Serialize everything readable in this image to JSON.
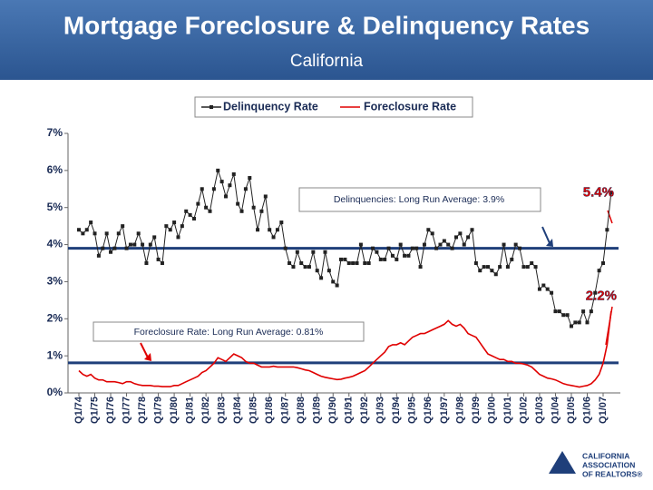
{
  "chart_data": {
    "type": "line",
    "title": "Mortgage Foreclosure & Delinquency Rates",
    "subtitle": "California",
    "categories": [
      "Q1/74",
      null,
      null,
      null,
      "Q1/75",
      null,
      null,
      null,
      "Q1/76",
      null,
      null,
      null,
      "Q1/77",
      null,
      null,
      null,
      "Q1/78",
      null,
      null,
      null,
      "Q1/79",
      null,
      null,
      null,
      "Q1/80",
      null,
      null,
      null,
      "Q1/81",
      null,
      null,
      null,
      "Q1/82",
      null,
      null,
      null,
      "Q1/83",
      null,
      null,
      null,
      "Q1/84",
      null,
      null,
      null,
      "Q1/85",
      null,
      null,
      null,
      "Q1/86",
      null,
      null,
      null,
      "Q1/87",
      null,
      null,
      null,
      "Q1/88",
      null,
      null,
      null,
      "Q1/89",
      null,
      null,
      null,
      "Q1/90",
      null,
      null,
      null,
      "Q1/91",
      null,
      null,
      null,
      "Q1/92",
      null,
      null,
      null,
      "Q1/93",
      null,
      null,
      null,
      "Q1/94",
      null,
      null,
      null,
      "Q1/95",
      null,
      null,
      null,
      "Q1/96",
      null,
      null,
      null,
      "Q1/97",
      null,
      null,
      null,
      "Q1/98",
      null,
      null,
      null,
      "Q1/99",
      null,
      null,
      null,
      "Q1/00",
      null,
      null,
      null,
      "Q1/01",
      null,
      null,
      null,
      "Q1/02",
      null,
      null,
      null,
      "Q1/03",
      null,
      null,
      null,
      "Q1/04",
      null,
      null,
      null,
      "Q1/05",
      null,
      null,
      null,
      "Q1/06",
      null,
      null,
      null,
      "Q1/07",
      null,
      null
    ],
    "series": [
      {
        "name": "Delinquency Rate",
        "color": "#222222",
        "markers": true,
        "values": [
          4.4,
          4.3,
          4.4,
          4.6,
          4.3,
          3.7,
          3.9,
          4.3,
          3.8,
          3.9,
          4.3,
          4.5,
          3.9,
          4.0,
          4.0,
          4.3,
          4.0,
          3.5,
          4.0,
          4.2,
          3.6,
          3.5,
          4.5,
          4.4,
          4.6,
          4.2,
          4.5,
          4.9,
          4.8,
          4.7,
          5.1,
          5.5,
          5.0,
          4.9,
          5.5,
          6.0,
          5.7,
          5.3,
          5.6,
          5.9,
          5.1,
          4.9,
          5.5,
          5.8,
          5.0,
          4.4,
          4.9,
          5.3,
          4.4,
          4.2,
          4.4,
          4.6,
          3.9,
          3.5,
          3.4,
          3.8,
          3.5,
          3.4,
          3.4,
          3.8,
          3.3,
          3.1,
          3.8,
          3.3,
          3.0,
          2.9,
          3.6,
          3.6,
          3.5,
          3.5,
          3.5,
          4.0,
          3.5,
          3.5,
          3.9,
          3.8,
          3.6,
          3.6,
          3.9,
          3.7,
          3.6,
          4.0,
          3.7,
          3.7,
          3.9,
          3.9,
          3.4,
          4.0,
          4.4,
          4.3,
          3.9,
          4.0,
          4.1,
          4.0,
          3.9,
          4.2,
          4.3,
          4.0,
          4.2,
          4.4,
          3.5,
          3.3,
          3.4,
          3.4,
          3.3,
          3.2,
          3.4,
          4.0,
          3.4,
          3.6,
          4.0,
          3.9,
          3.4,
          3.4,
          3.5,
          3.4,
          2.8,
          2.9,
          2.8,
          2.7,
          2.2,
          2.2,
          2.1,
          2.1,
          1.8,
          1.9,
          1.9,
          2.2,
          1.9,
          2.2,
          2.7,
          3.3,
          3.5,
          4.4,
          5.4
        ]
      },
      {
        "name": "Foreclosure Rate",
        "color": "#e00000",
        "markers": false,
        "values": [
          0.6,
          0.5,
          0.45,
          0.5,
          0.4,
          0.35,
          0.35,
          0.3,
          0.3,
          0.3,
          0.28,
          0.25,
          0.3,
          0.3,
          0.25,
          0.22,
          0.2,
          0.2,
          0.2,
          0.18,
          0.18,
          0.17,
          0.17,
          0.17,
          0.2,
          0.2,
          0.25,
          0.3,
          0.35,
          0.4,
          0.45,
          0.55,
          0.6,
          0.7,
          0.8,
          0.95,
          0.9,
          0.85,
          0.95,
          1.05,
          1.0,
          0.95,
          0.85,
          0.8,
          0.8,
          0.75,
          0.7,
          0.7,
          0.7,
          0.72,
          0.7,
          0.7,
          0.7,
          0.7,
          0.7,
          0.68,
          0.65,
          0.62,
          0.6,
          0.55,
          0.5,
          0.45,
          0.42,
          0.4,
          0.38,
          0.36,
          0.37,
          0.4,
          0.42,
          0.45,
          0.5,
          0.55,
          0.6,
          0.7,
          0.8,
          0.9,
          1.0,
          1.1,
          1.25,
          1.3,
          1.3,
          1.35,
          1.3,
          1.4,
          1.5,
          1.55,
          1.6,
          1.6,
          1.65,
          1.7,
          1.75,
          1.8,
          1.85,
          1.95,
          1.85,
          1.8,
          1.85,
          1.75,
          1.6,
          1.55,
          1.5,
          1.35,
          1.2,
          1.05,
          1.0,
          0.95,
          0.9,
          0.9,
          0.85,
          0.85,
          0.8,
          0.8,
          0.78,
          0.75,
          0.7,
          0.6,
          0.5,
          0.45,
          0.4,
          0.38,
          0.35,
          0.3,
          0.25,
          0.22,
          0.2,
          0.18,
          0.16,
          0.18,
          0.2,
          0.25,
          0.35,
          0.5,
          0.8,
          1.3,
          2.2
        ]
      }
    ],
    "reference_lines": [
      {
        "label": "Delinquencies: Long Run Average: 3.9%",
        "value": 3.9,
        "color": "#1f3f7a"
      },
      {
        "label": "Foreclosure Rate: Long Run Average: 0.81%",
        "value": 0.81,
        "color": "#1f3f7a"
      }
    ],
    "annotations": [
      {
        "text": "5.4%",
        "value": 5.4
      },
      {
        "text": "2.2%",
        "value": 2.2
      }
    ],
    "ylim": [
      0,
      7
    ],
    "yticks": [
      {
        "value": 0,
        "label": "0%"
      },
      {
        "value": 1,
        "label": "1%"
      },
      {
        "value": 2,
        "label": "2%"
      },
      {
        "value": 3,
        "label": "3%"
      },
      {
        "value": 4,
        "label": "4%"
      },
      {
        "value": 5,
        "label": "5%"
      },
      {
        "value": 6,
        "label": "6%"
      },
      {
        "value": 7,
        "label": "7%"
      }
    ],
    "grid": false,
    "legend": "top",
    "logo": [
      "CALIFORNIA",
      "ASSOCIATION",
      "OF REALTORS®"
    ]
  }
}
